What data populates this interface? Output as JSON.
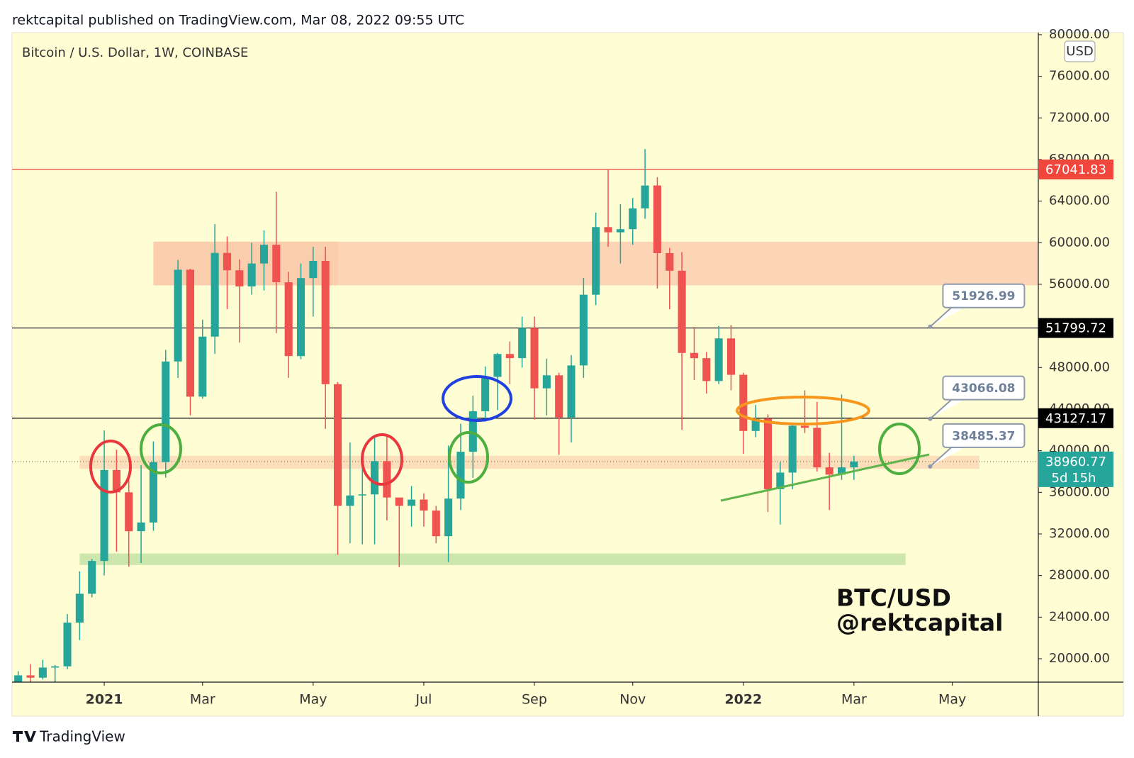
{
  "chart_data": {
    "type": "candlestick",
    "header": "rektcapital published on TradingView.com, Mar 08, 2022 09:55 UTC",
    "title": "Bitcoin / U.S. Dollar, 1W, COINBASE",
    "currency": "USD",
    "watermark": [
      "BTC/USD",
      "@rektcapital"
    ],
    "footer": "TradingView",
    "up_color": "#26a69a",
    "down_color": "#ef5350",
    "xlim": [
      -0.5,
      83
    ],
    "ylim": [
      17750,
      80200
    ],
    "xticks": [
      {
        "value": 7,
        "label": "2021"
      },
      {
        "value": 15,
        "label": "Mar"
      },
      {
        "value": 24,
        "label": "May"
      },
      {
        "value": 33,
        "label": "Jul"
      },
      {
        "value": 42,
        "label": "Sep"
      },
      {
        "value": 50,
        "label": "Nov"
      },
      {
        "value": 59,
        "label": "2022"
      },
      {
        "value": 68,
        "label": "Mar"
      },
      {
        "value": 76,
        "label": "May"
      }
    ],
    "yticks": [
      {
        "value": 20000,
        "label": "20000.00"
      },
      {
        "value": 24000,
        "label": "24000.00"
      },
      {
        "value": 28000,
        "label": "28000.00"
      },
      {
        "value": 32000,
        "label": "32000.00"
      },
      {
        "value": 36000,
        "label": "36000.00"
      },
      {
        "value": 40000,
        "label": "40000.00"
      },
      {
        "value": 44000,
        "label": "44000.00"
      },
      {
        "value": 48000,
        "label": "48000.00"
      },
      {
        "value": 52000,
        "label": "52000.00"
      },
      {
        "value": 56000,
        "label": "56000.00"
      },
      {
        "value": 60000,
        "label": "60000.00"
      },
      {
        "value": 64000,
        "label": "64000.00"
      },
      {
        "value": 68000,
        "label": "68000.00"
      },
      {
        "value": 72000,
        "label": "72000.00"
      },
      {
        "value": 76000,
        "label": "76000.00"
      },
      {
        "value": 80000,
        "label": "80000.00"
      }
    ],
    "open": [
      15960,
      18400,
      18180,
      19150,
      19270,
      23470,
      26250,
      29400,
      38150,
      36000,
      32260,
      33100,
      38900,
      48580,
      57400,
      45200,
      50970,
      59020,
      57350,
      55800,
      58000,
      59800,
      56200,
      49100,
      56600,
      58250,
      46400,
      34700,
      35700,
      35800,
      39000,
      35500,
      34700,
      35300,
      34250,
      31780,
      35400,
      39900,
      43800,
      47100,
      49300,
      48900,
      51800,
      46000,
      47250,
      43200,
      48200,
      55000,
      61500,
      61000,
      61300,
      63300,
      65500,
      59000,
      57300,
      49400,
      48900,
      46700,
      50800,
      47300,
      41900,
      43100,
      36300,
      37900,
      42400,
      42200,
      38400,
      37700,
      38400
    ],
    "high": [
      18800,
      19500,
      19900,
      19400,
      24300,
      28400,
      29600,
      41950,
      40100,
      37850,
      38600,
      40900,
      49700,
      58350,
      57500,
      52600,
      61800,
      60600,
      58400,
      60000,
      61200,
      64900,
      57200,
      58000,
      59600,
      59600,
      46600,
      40800,
      39500,
      41300,
      41400,
      35500,
      36600,
      35900,
      34700,
      40500,
      42600,
      45300,
      48100,
      49400,
      50500,
      52900,
      52900,
      48850,
      47500,
      49200,
      56600,
      62900,
      67000,
      63700,
      64300,
      69000,
      66300,
      59500,
      59100,
      51900,
      49500,
      52000,
      52100,
      47500,
      44400,
      43500,
      38900,
      42600,
      45800,
      44700,
      39800,
      45400,
      39500
    ],
    "low": [
      15800,
      16200,
      18000,
      17600,
      19000,
      21800,
      25900,
      28000,
      30300,
      28850,
      29200,
      32300,
      37400,
      47000,
      43400,
      45000,
      49300,
      53600,
      50400,
      55000,
      55400,
      51300,
      47000,
      48800,
      52900,
      42100,
      30000,
      31100,
      31000,
      31000,
      33300,
      28800,
      32700,
      32700,
      31100,
      29300,
      34300,
      37400,
      42800,
      43900,
      46400,
      48000,
      43000,
      43400,
      39600,
      40800,
      47000,
      54000,
      59600,
      58000,
      59800,
      62300,
      55600,
      53600,
      42000,
      46800,
      45500,
      46400,
      45800,
      39700,
      41300,
      34100,
      32900,
      36300,
      41700,
      38000,
      34300,
      37200,
      37200
    ],
    "close": [
      18400,
      18180,
      19150,
      19270,
      23470,
      26250,
      29400,
      38150,
      36000,
      32260,
      33100,
      38900,
      48580,
      57400,
      45200,
      50970,
      59020,
      57350,
      55800,
      58000,
      59800,
      56200,
      49100,
      56600,
      58250,
      46400,
      34700,
      35700,
      35800,
      39000,
      35500,
      34700,
      35300,
      34250,
      31780,
      35400,
      39900,
      43800,
      47100,
      49300,
      48900,
      51800,
      46000,
      47250,
      43200,
      48200,
      55000,
      61500,
      61000,
      61300,
      63300,
      65500,
      59000,
      57300,
      49400,
      48900,
      46700,
      50800,
      47300,
      41900,
      43100,
      36300,
      37900,
      42400,
      42200,
      38400,
      37700,
      38400,
      38960.77
    ],
    "zones": [
      {
        "x": [
          11,
          26
        ],
        "y": [
          55900,
          60100
        ],
        "color": "#f9c8a9"
      },
      {
        "x": [
          26,
          83
        ],
        "y": [
          55900,
          60100
        ],
        "color": "#fbd0b2"
      },
      {
        "x": [
          5,
          78.2
        ],
        "y": [
          38260,
          39510
        ],
        "color": "#f9dbb7"
      },
      {
        "x": [
          5,
          72.2
        ],
        "y": [
          29010,
          30120
        ],
        "color": "#c6e3a8"
      }
    ],
    "levels": [
      {
        "value": 67041.83,
        "color": "#f0463c"
      },
      {
        "value": 51799.72,
        "color": "#000000"
      },
      {
        "value": 43127.17,
        "color": "#000000"
      }
    ],
    "current_price": {
      "value": 38960.77,
      "countdown": "5d 15h",
      "color": "#26a69a"
    },
    "callouts": [
      {
        "value": 51926.99,
        "x": 74.2
      },
      {
        "value": 43066.08,
        "x": 74.2
      },
      {
        "value": 38485.37,
        "x": 74.2
      }
    ]
  }
}
